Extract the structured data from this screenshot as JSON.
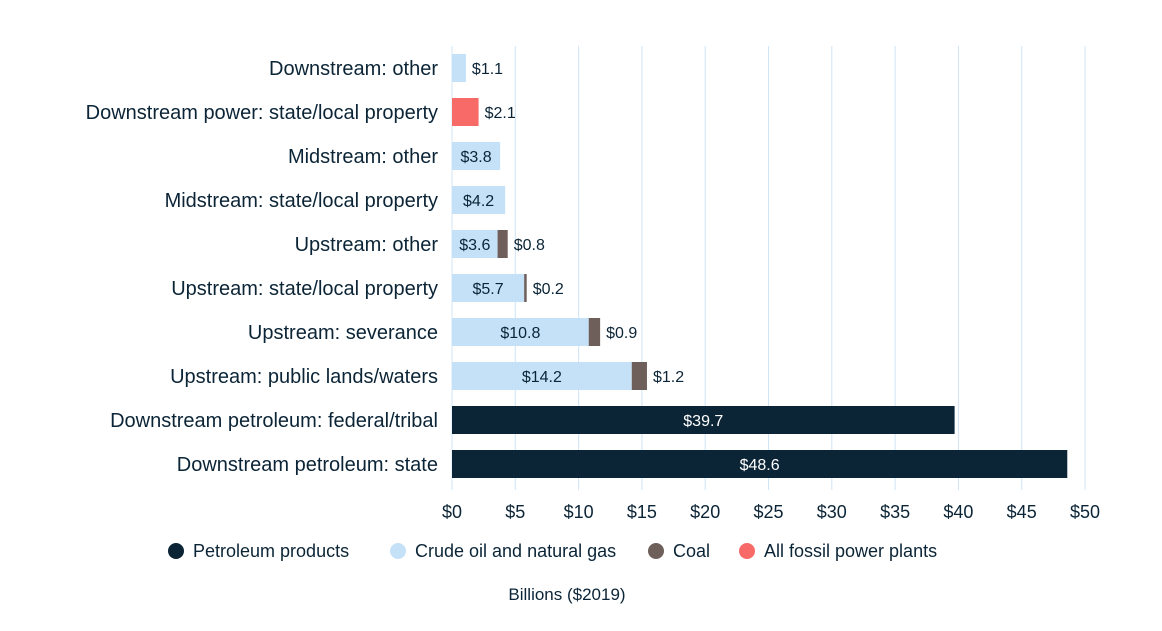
{
  "chart_data": {
    "type": "bar",
    "orientation": "horizontal",
    "stacked": true,
    "categories": [
      "Downstream: other",
      "Downstream power: state/local property",
      "Midstream: other",
      "Midstream: state/local property",
      "Upstream: other",
      "Upstream: state/local property",
      "Upstream: severance",
      "Upstream: public lands/waters",
      "Downstream petroleum: federal/tribal",
      "Downstream petroleum: state"
    ],
    "series": [
      {
        "name": "Petroleum products",
        "color": "#0b2436",
        "label_color": "#ffffff",
        "values": [
          null,
          null,
          null,
          null,
          null,
          null,
          null,
          null,
          39.7,
          48.6
        ],
        "labels": [
          "",
          "",
          "",
          "",
          "",
          "",
          "",
          "",
          "$39.7",
          "$48.6"
        ]
      },
      {
        "name": "Crude oil and natural gas",
        "color": "#c5e1f8",
        "label_color": "#0b2436",
        "values": [
          1.1,
          null,
          3.8,
          4.2,
          3.6,
          5.7,
          10.8,
          14.2,
          null,
          null
        ],
        "labels": [
          "$1.1",
          "",
          "$3.8",
          "$4.2",
          "$3.6",
          "$5.7",
          "$10.8",
          "$14.2",
          "",
          ""
        ]
      },
      {
        "name": "Coal",
        "color": "#6e5f5a",
        "label_color": "#0b2436",
        "values": [
          null,
          null,
          null,
          null,
          0.8,
          0.2,
          0.9,
          1.2,
          null,
          null
        ],
        "labels": [
          "",
          "",
          "",
          "",
          "$0.8",
          "$0.2",
          "$0.9",
          "$1.2",
          "",
          ""
        ]
      },
      {
        "name": "All fossil power plants",
        "color": "#f76a68",
        "label_color": "#0b2436",
        "values": [
          null,
          2.1,
          null,
          null,
          null,
          null,
          null,
          null,
          null,
          null
        ],
        "labels": [
          "",
          "$2.1",
          "",
          "",
          "",
          "",
          "",
          "",
          "",
          ""
        ]
      }
    ],
    "xlim": [
      0,
      50
    ],
    "xticks": [
      "$0",
      "$5",
      "$10",
      "$15",
      "$20",
      "$25",
      "$30",
      "$35",
      "$40",
      "$45",
      "$50"
    ],
    "xlabel": "Billions ($2019)",
    "grid": "vertical",
    "legend_position": "bottom"
  }
}
